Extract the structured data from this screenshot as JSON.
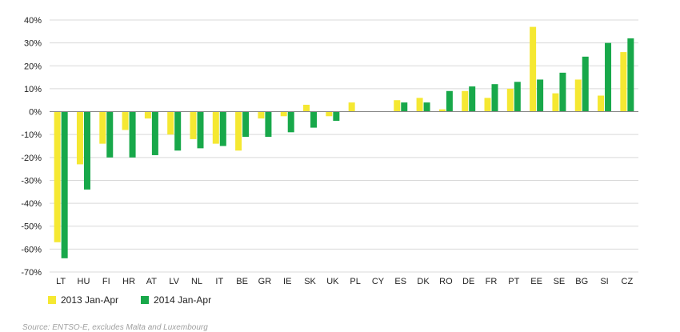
{
  "chart_data": {
    "type": "bar",
    "categories": [
      "LT",
      "HU",
      "FI",
      "HR",
      "AT",
      "LV",
      "NL",
      "IT",
      "BE",
      "GR",
      "IE",
      "SK",
      "UK",
      "PL",
      "CY",
      "ES",
      "DK",
      "RO",
      "DE",
      "FR",
      "PT",
      "EE",
      "SE",
      "BG",
      "SI",
      "CZ"
    ],
    "series": [
      {
        "name": "2013 Jan-Apr",
        "color": "#f5e832",
        "values": [
          -57,
          -23,
          -14,
          -8,
          -3,
          -10,
          -12,
          -14,
          -17,
          -3,
          -2,
          3,
          -2,
          4,
          0,
          5,
          6,
          1,
          9,
          6,
          10,
          37,
          8,
          14,
          7,
          26
        ]
      },
      {
        "name": "2014 Jan-Apr",
        "color": "#18a84a",
        "values": [
          -64,
          -34,
          -20,
          -20,
          -19,
          -17,
          -16,
          -15,
          -11,
          -11,
          -9,
          -7,
          -4,
          0,
          0,
          4,
          4,
          9,
          11,
          12,
          13,
          14,
          17,
          24,
          30,
          32
        ]
      }
    ],
    "yticks": [
      "40%",
      "30%",
      "20%",
      "10%",
      "0%",
      "-10%",
      "-20%",
      "-30%",
      "-40%",
      "-50%",
      "-60%",
      "-70%"
    ],
    "ylim": [
      -70,
      40
    ],
    "grid": true,
    "legend": "bottom-left",
    "title": "",
    "xlabel": "",
    "ylabel": ""
  },
  "source_note": "Source: ENTSO-E, excludes Malta and Luxembourg"
}
